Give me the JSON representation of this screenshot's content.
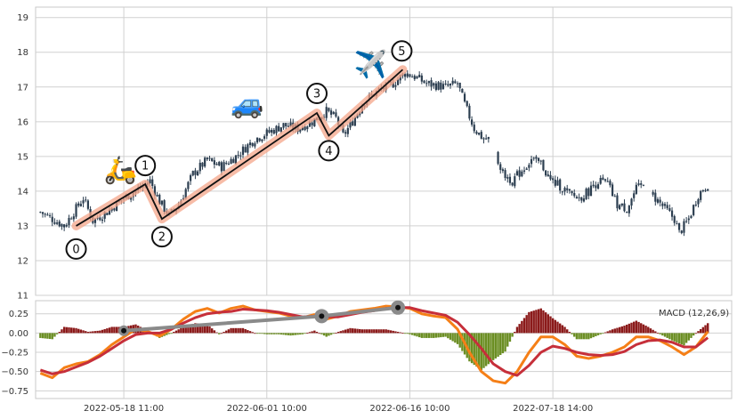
{
  "chart_data": [
    {
      "type": "candlestick",
      "title": "",
      "ylim": [
        11,
        19.3
      ],
      "yticks": [
        "11",
        "12",
        "13",
        "14",
        "15",
        "16",
        "17",
        "18",
        "19"
      ],
      "grid": true,
      "price_path": [
        [
          0,
          13.4
        ],
        [
          5,
          13.2
        ],
        [
          10,
          13.0
        ],
        [
          14,
          13.4
        ],
        [
          18,
          13.8
        ],
        [
          22,
          13.15
        ],
        [
          28,
          13.4
        ],
        [
          35,
          13.8
        ],
        [
          42,
          14.1
        ],
        [
          46,
          14.3
        ],
        [
          50,
          13.7
        ],
        [
          54,
          13.3
        ],
        [
          58,
          13.6
        ],
        [
          64,
          14.5
        ],
        [
          70,
          14.9
        ],
        [
          76,
          14.7
        ],
        [
          82,
          15.0
        ],
        [
          90,
          15.5
        ],
        [
          96,
          15.7
        ],
        [
          102,
          15.9
        ],
        [
          108,
          15.8
        ],
        [
          114,
          16.0
        ],
        [
          120,
          16.3
        ],
        [
          124,
          16.1
        ],
        [
          127,
          15.6
        ],
        [
          130,
          15.9
        ],
        [
          136,
          16.6
        ],
        [
          142,
          16.9
        ],
        [
          148,
          17.1
        ],
        [
          153,
          17.4
        ],
        [
          157,
          17.3
        ],
        [
          162,
          17.1
        ],
        [
          170,
          17.0
        ],
        [
          175,
          17.1
        ],
        [
          178,
          16.5
        ],
        [
          182,
          15.8
        ],
        [
          186,
          15.5
        ],
        [
          189,
          15.5
        ],
        [
          194,
          14.5
        ],
        [
          198,
          14.3
        ],
        [
          202,
          14.6
        ],
        [
          206,
          14.9
        ],
        [
          210,
          14.8
        ],
        [
          214,
          14.3
        ],
        [
          218,
          14.15
        ],
        [
          222,
          13.9
        ],
        [
          226,
          13.8
        ],
        [
          230,
          14.0
        ],
        [
          234,
          14.3
        ],
        [
          238,
          14.2
        ],
        [
          242,
          13.6
        ],
        [
          246,
          13.5
        ],
        [
          250,
          14.05
        ],
        [
          254,
          14.2
        ],
        [
          258,
          13.8
        ],
        [
          262,
          13.5
        ],
        [
          266,
          13.2
        ],
        [
          268,
          12.8
        ],
        [
          272,
          13.2
        ],
        [
          276,
          13.9
        ],
        [
          280,
          14.2
        ]
      ],
      "gaps": [
        [
          188,
          192
        ],
        [
          253,
          257
        ]
      ],
      "zigzag": [
        {
          "label": "0",
          "x": 15,
          "y": 13.0
        },
        {
          "label": "1",
          "x": 44,
          "y": 14.2
        },
        {
          "label": "2",
          "x": 51,
          "y": 13.2
        },
        {
          "label": "3",
          "x": 116,
          "y": 16.25
        },
        {
          "label": "4",
          "x": 121,
          "y": 15.6
        },
        {
          "label": "5",
          "x": 152,
          "y": 17.5
        }
      ],
      "icons": [
        {
          "name": "scooter-icon",
          "glyph": "🛵",
          "near_wave": "1"
        },
        {
          "name": "car-icon",
          "glyph": "🚙",
          "near_wave": "3"
        },
        {
          "name": "airplane-icon",
          "glyph": "✈️",
          "near_wave": "5"
        }
      ]
    },
    {
      "type": "macd",
      "label": "MACD (12,26,9)",
      "ylim": [
        -0.85,
        0.42
      ],
      "yticks": [
        "−0.75",
        "−0.50",
        "−0.25",
        "0.00",
        "0.25"
      ],
      "ytick_values": [
        -0.75,
        -0.5,
        -0.25,
        0.0,
        0.25
      ],
      "x_tick_labels": [
        "2022-05-18 11:00",
        "2022-06-01 10:00",
        "2022-06-16 10:00",
        "2022-07-18 14:00"
      ],
      "x_tick_positions": [
        35,
        95,
        155,
        215
      ],
      "xlim": [
        -2,
        290
      ],
      "macd_path": [
        [
          0,
          -0.52
        ],
        [
          5,
          -0.58
        ],
        [
          10,
          -0.45
        ],
        [
          15,
          -0.4
        ],
        [
          20,
          -0.37
        ],
        [
          25,
          -0.28
        ],
        [
          30,
          -0.15
        ],
        [
          35,
          -0.05
        ],
        [
          40,
          0.05
        ],
        [
          45,
          0.02
        ],
        [
          50,
          -0.04
        ],
        [
          55,
          0.05
        ],
        [
          60,
          0.18
        ],
        [
          65,
          0.28
        ],
        [
          70,
          0.32
        ],
        [
          75,
          0.26
        ],
        [
          80,
          0.32
        ],
        [
          85,
          0.35
        ],
        [
          90,
          0.3
        ],
        [
          95,
          0.28
        ],
        [
          100,
          0.26
        ],
        [
          105,
          0.22
        ],
        [
          110,
          0.2
        ],
        [
          115,
          0.24
        ],
        [
          120,
          0.18
        ],
        [
          125,
          0.22
        ],
        [
          130,
          0.28
        ],
        [
          135,
          0.3
        ],
        [
          140,
          0.32
        ],
        [
          145,
          0.35
        ],
        [
          150,
          0.34
        ],
        [
          155,
          0.32
        ],
        [
          160,
          0.25
        ],
        [
          165,
          0.22
        ],
        [
          170,
          0.2
        ],
        [
          175,
          0.05
        ],
        [
          180,
          -0.25
        ],
        [
          185,
          -0.5
        ],
        [
          190,
          -0.62
        ],
        [
          195,
          -0.65
        ],
        [
          200,
          -0.5
        ],
        [
          205,
          -0.25
        ],
        [
          210,
          -0.05
        ],
        [
          215,
          -0.05
        ],
        [
          220,
          -0.15
        ],
        [
          225,
          -0.3
        ],
        [
          230,
          -0.33
        ],
        [
          235,
          -0.3
        ],
        [
          240,
          -0.25
        ],
        [
          245,
          -0.18
        ],
        [
          250,
          -0.05
        ],
        [
          255,
          -0.05
        ],
        [
          260,
          -0.1
        ],
        [
          265,
          -0.18
        ],
        [
          270,
          -0.28
        ],
        [
          275,
          -0.18
        ],
        [
          280,
          0.02
        ]
      ],
      "signal_path": [
        [
          0,
          -0.48
        ],
        [
          5,
          -0.53
        ],
        [
          10,
          -0.5
        ],
        [
          15,
          -0.44
        ],
        [
          20,
          -0.38
        ],
        [
          25,
          -0.3
        ],
        [
          30,
          -0.2
        ],
        [
          35,
          -0.1
        ],
        [
          40,
          -0.02
        ],
        [
          45,
          0.0
        ],
        [
          50,
          0.0
        ],
        [
          55,
          0.05
        ],
        [
          60,
          0.13
        ],
        [
          65,
          0.2
        ],
        [
          70,
          0.25
        ],
        [
          75,
          0.27
        ],
        [
          80,
          0.28
        ],
        [
          85,
          0.31
        ],
        [
          90,
          0.3
        ],
        [
          95,
          0.29
        ],
        [
          100,
          0.27
        ],
        [
          105,
          0.24
        ],
        [
          110,
          0.21
        ],
        [
          115,
          0.22
        ],
        [
          120,
          0.21
        ],
        [
          125,
          0.21
        ],
        [
          130,
          0.24
        ],
        [
          135,
          0.27
        ],
        [
          140,
          0.29
        ],
        [
          145,
          0.32
        ],
        [
          150,
          0.33
        ],
        [
          155,
          0.33
        ],
        [
          160,
          0.29
        ],
        [
          165,
          0.26
        ],
        [
          170,
          0.23
        ],
        [
          175,
          0.14
        ],
        [
          180,
          -0.02
        ],
        [
          185,
          -0.2
        ],
        [
          190,
          -0.4
        ],
        [
          195,
          -0.5
        ],
        [
          200,
          -0.55
        ],
        [
          205,
          -0.42
        ],
        [
          210,
          -0.25
        ],
        [
          215,
          -0.17
        ],
        [
          220,
          -0.2
        ],
        [
          225,
          -0.25
        ],
        [
          230,
          -0.28
        ],
        [
          235,
          -0.29
        ],
        [
          240,
          -0.28
        ],
        [
          245,
          -0.24
        ],
        [
          250,
          -0.15
        ],
        [
          255,
          -0.1
        ],
        [
          260,
          -0.09
        ],
        [
          265,
          -0.12
        ],
        [
          270,
          -0.18
        ],
        [
          275,
          -0.18
        ],
        [
          280,
          -0.06
        ]
      ],
      "trend_points": [
        {
          "x": 35,
          "y": 0.03
        },
        {
          "x": 118,
          "y": 0.22
        },
        {
          "x": 150,
          "y": 0.33
        }
      ]
    }
  ],
  "colors": {
    "up_candle": "#2c3e50",
    "down_candle": "#2c3e50",
    "zigzag_band": "#f4a58a",
    "zigzag_line": "#111111",
    "macd_line": "#f57f17",
    "signal_line": "#c62f3a",
    "hist_pos": "#8b1a1a",
    "hist_neg": "#6b8e23",
    "trend": "#8a8a8a",
    "grid": "#d0d0d0",
    "frame": "#c8c8c8"
  }
}
